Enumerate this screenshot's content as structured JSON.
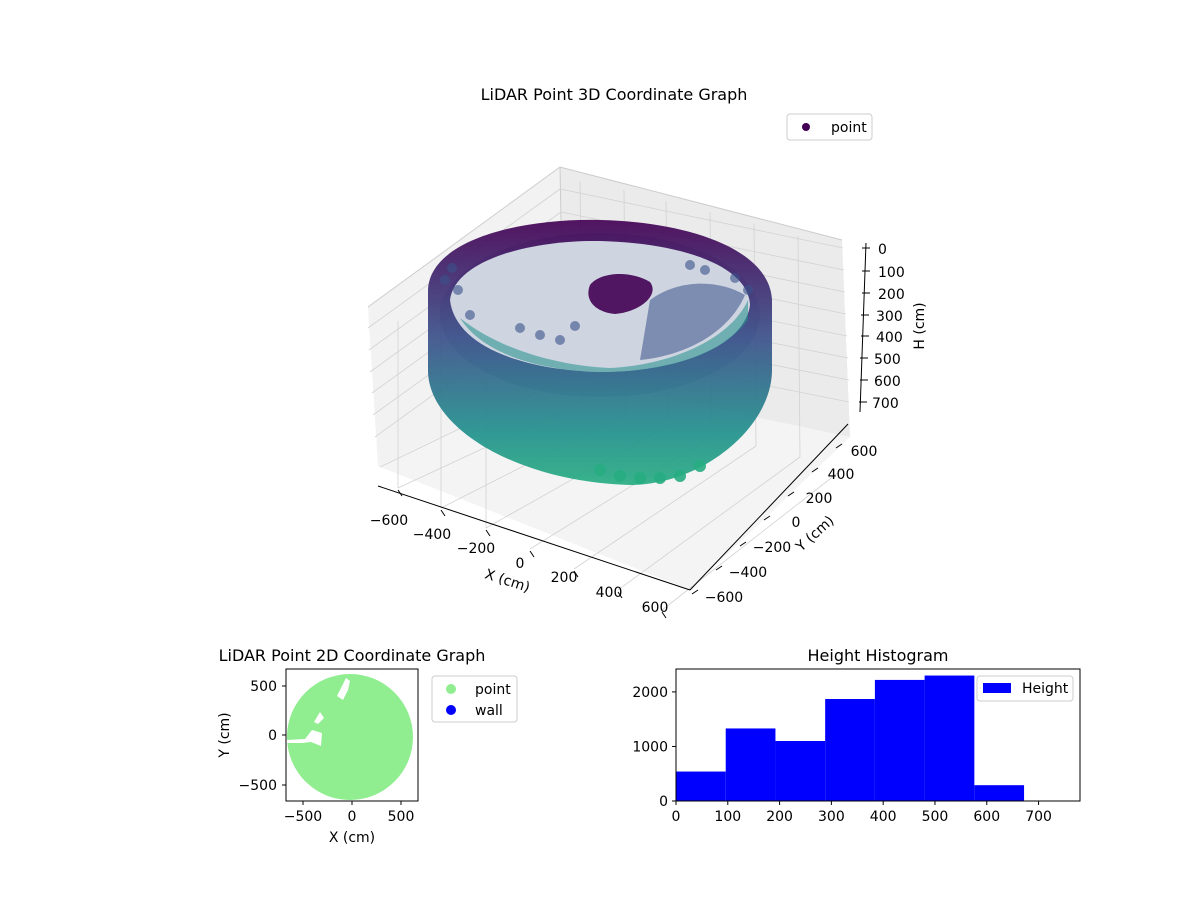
{
  "chart_data": [
    {
      "type": "scatter3d",
      "title": "LiDAR Point 3D Coordinate Graph",
      "xlabel": "X (cm)",
      "ylabel": "Y (cm)",
      "zlabel": "H (cm)",
      "xticks": [
        "−600",
        "−400",
        "−200",
        "0",
        "200",
        "400",
        "600"
      ],
      "yticks": [
        "−600",
        "−400",
        "−200",
        "0",
        "200",
        "400",
        "600"
      ],
      "zticks": [
        "0",
        "100",
        "200",
        "300",
        "400",
        "500",
        "600",
        "700"
      ],
      "xlim": [
        -650,
        650
      ],
      "ylim": [
        -650,
        650
      ],
      "zlim": [
        750,
        0
      ],
      "legend": [
        "point"
      ],
      "legend_position": "top-right",
      "colormap": [
        "#440154",
        "#3b528b",
        "#21908d",
        "#27ad81"
      ],
      "description_series": {
        "ring_radius_approx": 600,
        "height_range": [
          0,
          750
        ]
      }
    },
    {
      "type": "scatter",
      "title": "LiDAR Point 2D Coordinate Graph",
      "xlabel": "X (cm)",
      "ylabel": "Y (cm)",
      "xticks": [
        "−500",
        "0",
        "500"
      ],
      "yticks": [
        "500",
        "0",
        "−500"
      ],
      "xlim": [
        -650,
        650
      ],
      "ylim": [
        -650,
        650
      ],
      "legend": [
        "point",
        "wall"
      ],
      "legend_position": "outside-right",
      "series_colors": {
        "point": "#90ee90",
        "wall": "#0000ff"
      }
    },
    {
      "type": "bar",
      "title": "Height Histogram",
      "legend": [
        "Height"
      ],
      "legend_position": "top-right",
      "bar_color": "#0000ff",
      "xticks": [
        "0",
        "100",
        "200",
        "300",
        "400",
        "500",
        "600",
        "700"
      ],
      "yticks": [
        "0",
        "1000",
        "2000"
      ],
      "xlim": [
        0,
        780
      ],
      "ylim": [
        0,
        2420
      ],
      "bins": [
        {
          "start": 0,
          "end": 96,
          "count": 540
        },
        {
          "start": 96,
          "end": 192,
          "count": 1330
        },
        {
          "start": 192,
          "end": 288,
          "count": 1100
        },
        {
          "start": 288,
          "end": 384,
          "count": 1870
        },
        {
          "start": 384,
          "end": 480,
          "count": 2220
        },
        {
          "start": 480,
          "end": 576,
          "count": 2300
        },
        {
          "start": 576,
          "end": 672,
          "count": 290
        }
      ]
    }
  ]
}
